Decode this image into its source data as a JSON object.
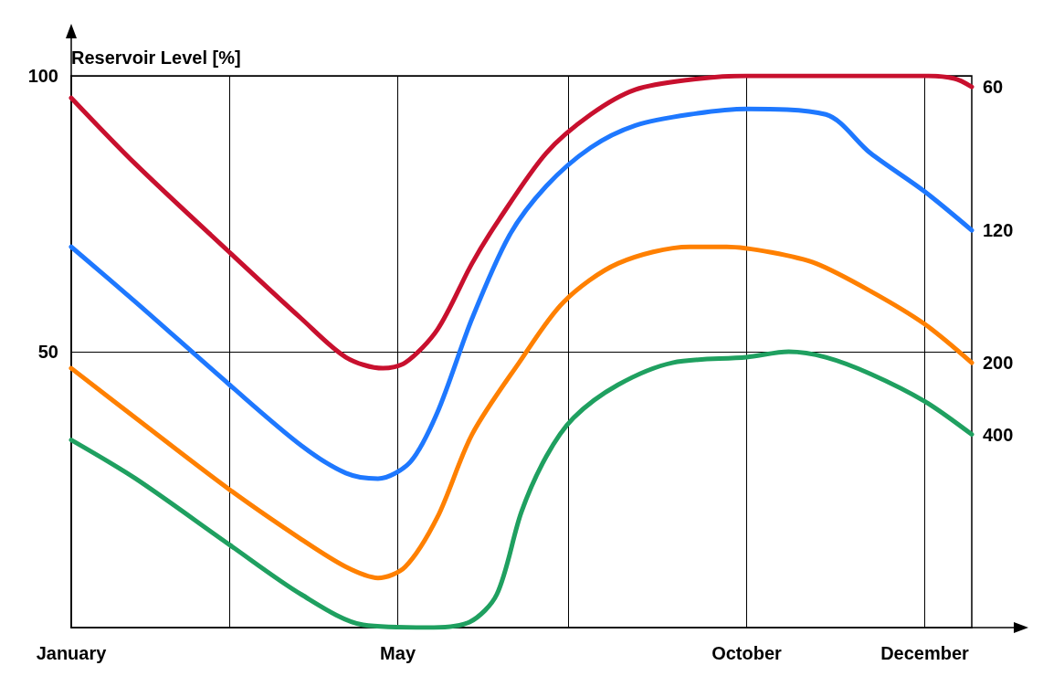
{
  "chart_data": {
    "type": "line",
    "ylabel": "Reservoir Level [%]",
    "xlim": [
      "--01-01",
      "--12-31"
    ],
    "xticks": [
      {
        "value": "--01-01",
        "label": "January"
      },
      {
        "value": "--03-06",
        "label": null
      },
      {
        "value": "--05-13",
        "label": "May"
      },
      {
        "value": "--07-21",
        "label": null
      },
      {
        "value": "--10-01",
        "label": "October"
      },
      {
        "value": "--12-12",
        "label": "December"
      }
    ],
    "ylim": [
      0,
      100
    ],
    "yticks": [
      50,
      100
    ],
    "grid": true,
    "marker": "none",
    "series": [
      {
        "name": "60",
        "color": "#c8102e",
        "x": [
          "--01-01",
          "--01-27",
          "--03-06",
          "--04-04",
          "--04-22",
          "--05-07",
          "--05-16",
          "--05-29",
          "--06-12",
          "--06-23",
          "--07-12",
          "--07-30",
          "--08-17",
          "--09-08",
          "--10-01",
          "--12-12",
          "--12-24",
          "--12-31"
        ],
        "values": [
          96,
          84,
          68,
          56,
          49,
          47,
          48,
          54,
          66,
          74,
          86,
          93,
          97.5,
          99.3,
          100,
          100,
          99.5,
          98
        ]
      },
      {
        "name": "120",
        "color": "#1e78ff",
        "x": [
          "--01-01",
          "--01-27",
          "--03-06",
          "--04-04",
          "--04-22",
          "--05-05",
          "--05-18",
          "--05-29",
          "--06-12",
          "--06-27",
          "--07-12",
          "--07-30",
          "--08-17",
          "--09-08",
          "--10-01",
          "--11-02",
          "--11-20",
          "--12-12",
          "--12-31"
        ],
        "values": [
          69,
          59,
          44,
          33,
          28,
          27,
          30,
          39,
          56,
          71,
          80,
          87,
          91,
          93,
          94,
          93,
          86,
          79,
          72
        ]
      },
      {
        "name": "200",
        "color": "#ff8000",
        "x": [
          "--01-01",
          "--01-27",
          "--03-06",
          "--04-04",
          "--04-22",
          "--05-05",
          "--05-16",
          "--05-29",
          "--06-12",
          "--07-01",
          "--07-19",
          "--08-10",
          "--09-08",
          "--09-23",
          "--10-11",
          "--10-29",
          "--11-20",
          "--12-12",
          "--12-31"
        ],
        "values": [
          47,
          38,
          25,
          16,
          11,
          9,
          11,
          20,
          35,
          48,
          59,
          66,
          69,
          69,
          68,
          66,
          61,
          55,
          48
        ]
      },
      {
        "name": "400",
        "color": "#1fa060",
        "x": [
          "--01-01",
          "--01-27",
          "--03-06",
          "--04-04",
          "--04-29",
          "--05-25",
          "--06-11",
          "--06-22",
          "--07-02",
          "--07-12",
          "--07-23",
          "--08-10",
          "--09-01",
          "--10-01",
          "--10-18",
          "--11-02",
          "--11-20",
          "--12-12",
          "--12-31"
        ],
        "values": [
          34,
          27,
          15,
          6,
          0.5,
          0,
          1,
          6,
          21,
          31,
          38,
          44,
          48,
          49,
          50,
          49,
          46,
          41,
          35
        ]
      }
    ]
  }
}
